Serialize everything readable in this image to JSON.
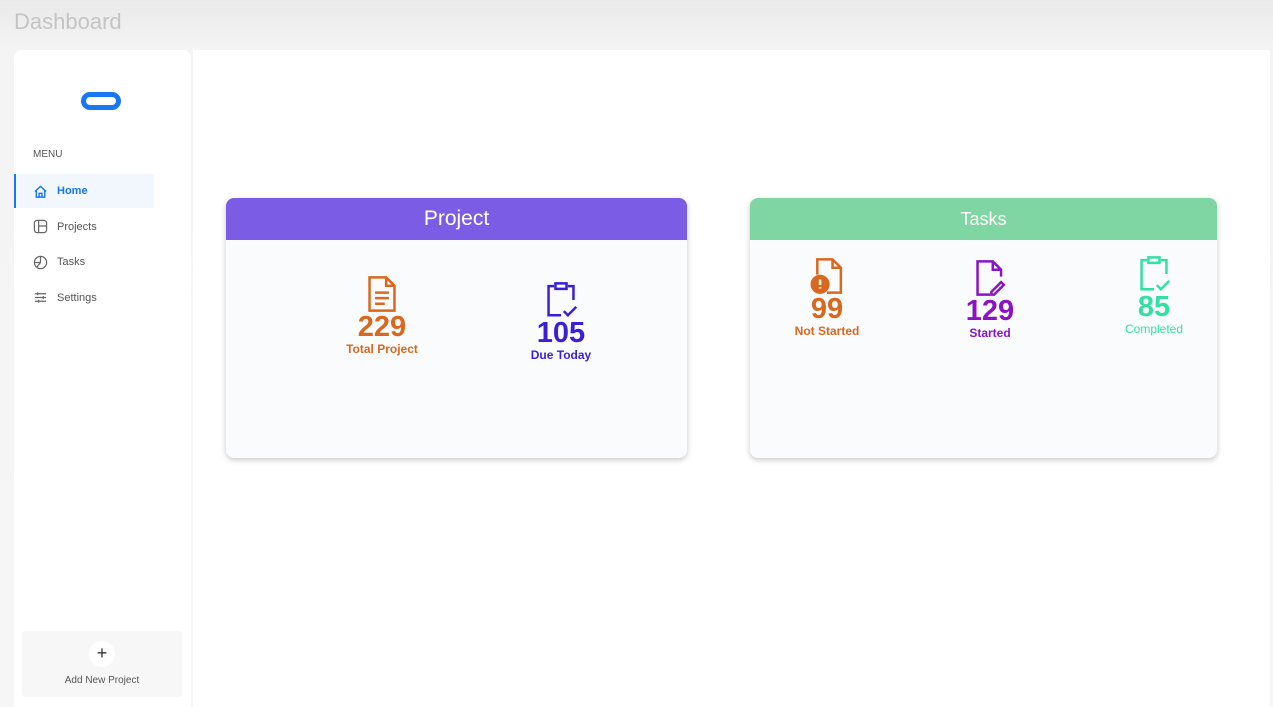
{
  "page_title": "Dashboard",
  "sidebar": {
    "menu_label": "MENU",
    "items": [
      {
        "label": "Home",
        "icon": "home-icon"
      },
      {
        "label": "Projects",
        "icon": "layout-icon"
      },
      {
        "label": "Tasks",
        "icon": "pie-icon"
      },
      {
        "label": "Settings",
        "icon": "sliders-icon"
      }
    ],
    "add_button": {
      "symbol": "+",
      "label": "Add New Project"
    }
  },
  "project_card": {
    "title": "Project",
    "color": "#7b5ce5",
    "stats": [
      {
        "value": "229",
        "label": "Total Project",
        "color": "#d9681e"
      },
      {
        "value": "105",
        "label": "Due Today",
        "color": "#3b1fd6"
      }
    ]
  },
  "tasks_card": {
    "title": "Tasks",
    "color": "#80d6a2",
    "stats": [
      {
        "value": "99",
        "label": "Not Started",
        "color": "#d9681e"
      },
      {
        "value": "129",
        "label": "Started",
        "color": "#8a13c4"
      },
      {
        "value": "85",
        "label": "Completed",
        "color": "#34e0a1"
      }
    ]
  }
}
